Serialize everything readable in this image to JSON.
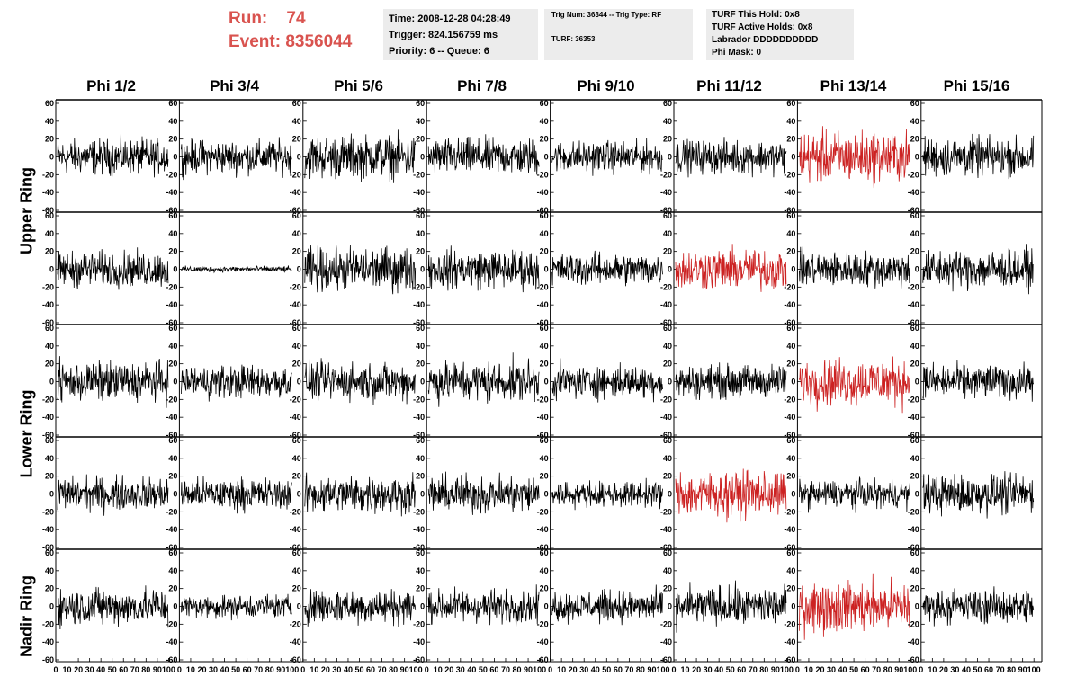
{
  "header": {
    "run_label": "Run:",
    "run_value": "74",
    "event_label": "Event:",
    "event_value": "8356044",
    "time": "Time: 2008-12-28 04:28:49",
    "trigger": "Trigger: 824.156759 ms",
    "priority": "Priority: 6 -- Queue: 6",
    "trig_num": "Trig Num: 36344 -- Trig Type: RF",
    "turf": "TURF: 36353",
    "turf_hold": "TURF This Hold: 0x8",
    "turf_active": "TURF Active Holds: 0x8",
    "labrador": "Labrador DDDDDDDDDD",
    "phi_mask": "Phi Mask: 0"
  },
  "columns": [
    "Phi 1/2",
    "Phi 3/4",
    "Phi 5/6",
    "Phi 7/8",
    "Phi 9/10",
    "Phi 11/12",
    "Phi 13/14",
    "Phi 15/16"
  ],
  "row_labels": [
    "Upper Ring",
    "Lower Ring",
    "Nadir Ring"
  ],
  "colors": {
    "trace": "#000000",
    "triggered": "#cc2222",
    "accent": "#d9534f"
  },
  "chart_data": {
    "type": "line",
    "rows": 5,
    "cols": 8,
    "ylim": [
      -60,
      60
    ],
    "xlim": [
      0,
      100
    ],
    "y_ticks": [
      -60,
      -40,
      -20,
      0,
      20,
      40,
      60
    ],
    "x_tick_labels": [
      "0",
      "10",
      "20",
      "30",
      "40",
      "50",
      "60",
      "70",
      "80",
      "90",
      "100"
    ],
    "grid": false,
    "triggered_panels": [
      [
        0,
        6
      ],
      [
        1,
        5
      ],
      [
        2,
        6
      ],
      [
        3,
        5
      ],
      [
        4,
        6
      ]
    ],
    "amplitudes": [
      [
        18,
        17,
        22,
        19,
        16,
        17,
        26,
        20
      ],
      [
        18,
        3,
        22,
        20,
        16,
        21,
        18,
        20
      ],
      [
        20,
        17,
        19,
        21,
        17,
        17,
        24,
        17
      ],
      [
        17,
        16,
        19,
        19,
        13,
        23,
        14,
        20
      ],
      [
        19,
        12,
        18,
        17,
        16,
        20,
        26,
        17
      ]
    ]
  }
}
